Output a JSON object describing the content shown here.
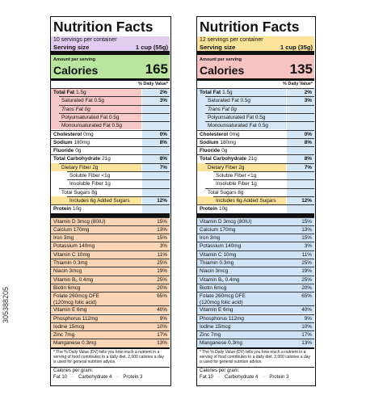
{
  "watermark": "305388205",
  "labels": [
    {
      "title": "Nutrition Facts",
      "servings": "10 servings per container",
      "serving_size_label": "Serving size",
      "serving_size": "1 cup (55g)",
      "amount_per_serving": "Amount per serving",
      "calories_label": "Calories",
      "calories": "165",
      "dv_header": "% Daily Value*",
      "nutrients": [
        {
          "name": "Total Fat",
          "amount": "1.5g",
          "dv": "2%"
        },
        {
          "name": "Saturated Fat 0.5g",
          "dv": "3%"
        },
        {
          "name": "Trans Fat 0g"
        },
        {
          "name": "Polyunsaturated Fat 0.5g"
        },
        {
          "name": "Monounsaturated Fat 0.5g"
        },
        {
          "name": "Cholesterol",
          "amount": "0mg",
          "dv": "0%"
        },
        {
          "name": "Sodium",
          "amount": "180mg",
          "dv": "8%"
        },
        {
          "name": "Fluoride",
          "amount": "0g"
        },
        {
          "name": "Total Carbohydrate",
          "amount": "21g",
          "dv": "8%"
        },
        {
          "name": "Dietary Fiber 2g",
          "dv": "7%"
        },
        {
          "name": "Soluble Fiber <1g"
        },
        {
          "name": "Insoluble Fiber 1g"
        },
        {
          "name": "Total Sugars 8g"
        },
        {
          "name": "Includes 6g Added Sugars",
          "dv": "12%"
        },
        {
          "name": "Protein",
          "amount": "10g"
        }
      ],
      "vitamins": [
        {
          "name": "Vitamin D 3mcg (80IU)",
          "dv": "15%"
        },
        {
          "name": "Calcium 170mg",
          "dv": "13%"
        },
        {
          "name": "Iron 3mg",
          "dv": "15%"
        },
        {
          "name": "Potassium 140mg",
          "dv": "3%"
        },
        {
          "name": "Vitamin C 10mg",
          "dv": "11%"
        },
        {
          "name": "Thiamin 0.3mg",
          "dv": "25%"
        },
        {
          "name": "Niacin 3mcg",
          "dv": "19%"
        },
        {
          "name": "Vitamin B₆ 0.4mg",
          "dv": "25%"
        },
        {
          "name": "Biotin 6mcg",
          "dv": "20%"
        },
        {
          "name": "Folate 260mcg DFE\n(120mcg folic acid)",
          "dv": "65%"
        },
        {
          "name": "Vitamin E 6mg",
          "dv": "40%"
        },
        {
          "name": "Phosphorus 112mg",
          "dv": "9%"
        },
        {
          "name": "Iodine 15mcg",
          "dv": "10%"
        },
        {
          "name": "Zinc 7mg",
          "dv": "17%"
        },
        {
          "name": "Manganese 0.3mg",
          "dv": "13%"
        }
      ],
      "footnote": "* The % Daily Value (DV) tells you how much a nutrient in a serving of food contributes to a daily diet. 2,000 calories a day is used for general nutrition advice.",
      "calories_per_gram": "Calories per gram:",
      "per_gram": [
        "Fat 10",
        "Carbohydrate 4",
        "Protein 3"
      ]
    },
    {
      "title": "Nutrition Facts",
      "servings": "12 servings per container",
      "serving_size_label": "Serving size",
      "serving_size": "1 cup (35g)",
      "amount_per_serving": "Amount per serving",
      "calories_label": "Calories",
      "calories": "135",
      "dv_header": "% Daily Value*",
      "nutrients": [
        {
          "name": "Total Fat",
          "amount": "1.5g",
          "dv": "2%"
        },
        {
          "name": "Saturated Fat 0.5g",
          "dv": "3%"
        },
        {
          "name": "Trans Fat 0g"
        },
        {
          "name": "Polyunsaturated Fat 0.5g"
        },
        {
          "name": "Monounsaturated Fat 0.5g"
        },
        {
          "name": "Cholesterol",
          "amount": "0mg",
          "dv": "0%"
        },
        {
          "name": "Sodium",
          "amount": "180mg",
          "dv": "8%"
        },
        {
          "name": "Fluoride",
          "amount": "0g"
        },
        {
          "name": "Total Carbohydrate",
          "amount": "21g",
          "dv": "8%"
        },
        {
          "name": "Dietary Fiber 2g",
          "dv": "7%"
        },
        {
          "name": "Soluble Fiber <1g"
        },
        {
          "name": "Insoluble Fiber 1g"
        },
        {
          "name": "Total Sugars 8g"
        },
        {
          "name": "Includes 6g Added Sugars",
          "dv": "12%"
        },
        {
          "name": "Protein",
          "amount": "10g"
        }
      ],
      "vitamins": [
        {
          "name": "Vitamin D 3mcg (80IU)",
          "dv": "15%"
        },
        {
          "name": "Calcium 170mg",
          "dv": "13%"
        },
        {
          "name": "Iron 3mg",
          "dv": "15%"
        },
        {
          "name": "Potassium 140mg",
          "dv": "3%"
        },
        {
          "name": "Vitamin C 10mg",
          "dv": "11%"
        },
        {
          "name": "Thiamin 0.3mg",
          "dv": "25%"
        },
        {
          "name": "Niacin 3mcg",
          "dv": "19%"
        },
        {
          "name": "Vitamin B₆ 0.4mg",
          "dv": "25%"
        },
        {
          "name": "Biotin 6mcg",
          "dv": "20%"
        },
        {
          "name": "Folate 260mcg DFE\n(120mcg folic acid)",
          "dv": "65%"
        },
        {
          "name": "Vitamin E 6mg",
          "dv": "40%"
        },
        {
          "name": "Phosphorus 112mg",
          "dv": "9%"
        },
        {
          "name": "Iodine 15mcg",
          "dv": "10%"
        },
        {
          "name": "Zinc 7mg",
          "dv": "17%"
        },
        {
          "name": "Manganese 0.3mg",
          "dv": "13%"
        }
      ],
      "footnote": "* The % Daily Value (DV) tells you how much a nutrient in a serving of food contributes to a daily diet. 2,000 calories a day is used for general nutrition advice.",
      "calories_per_gram": "Calories per gram:",
      "per_gram": [
        "Fat 10",
        "Carbohydrate 4",
        "Protein 3"
      ]
    }
  ]
}
